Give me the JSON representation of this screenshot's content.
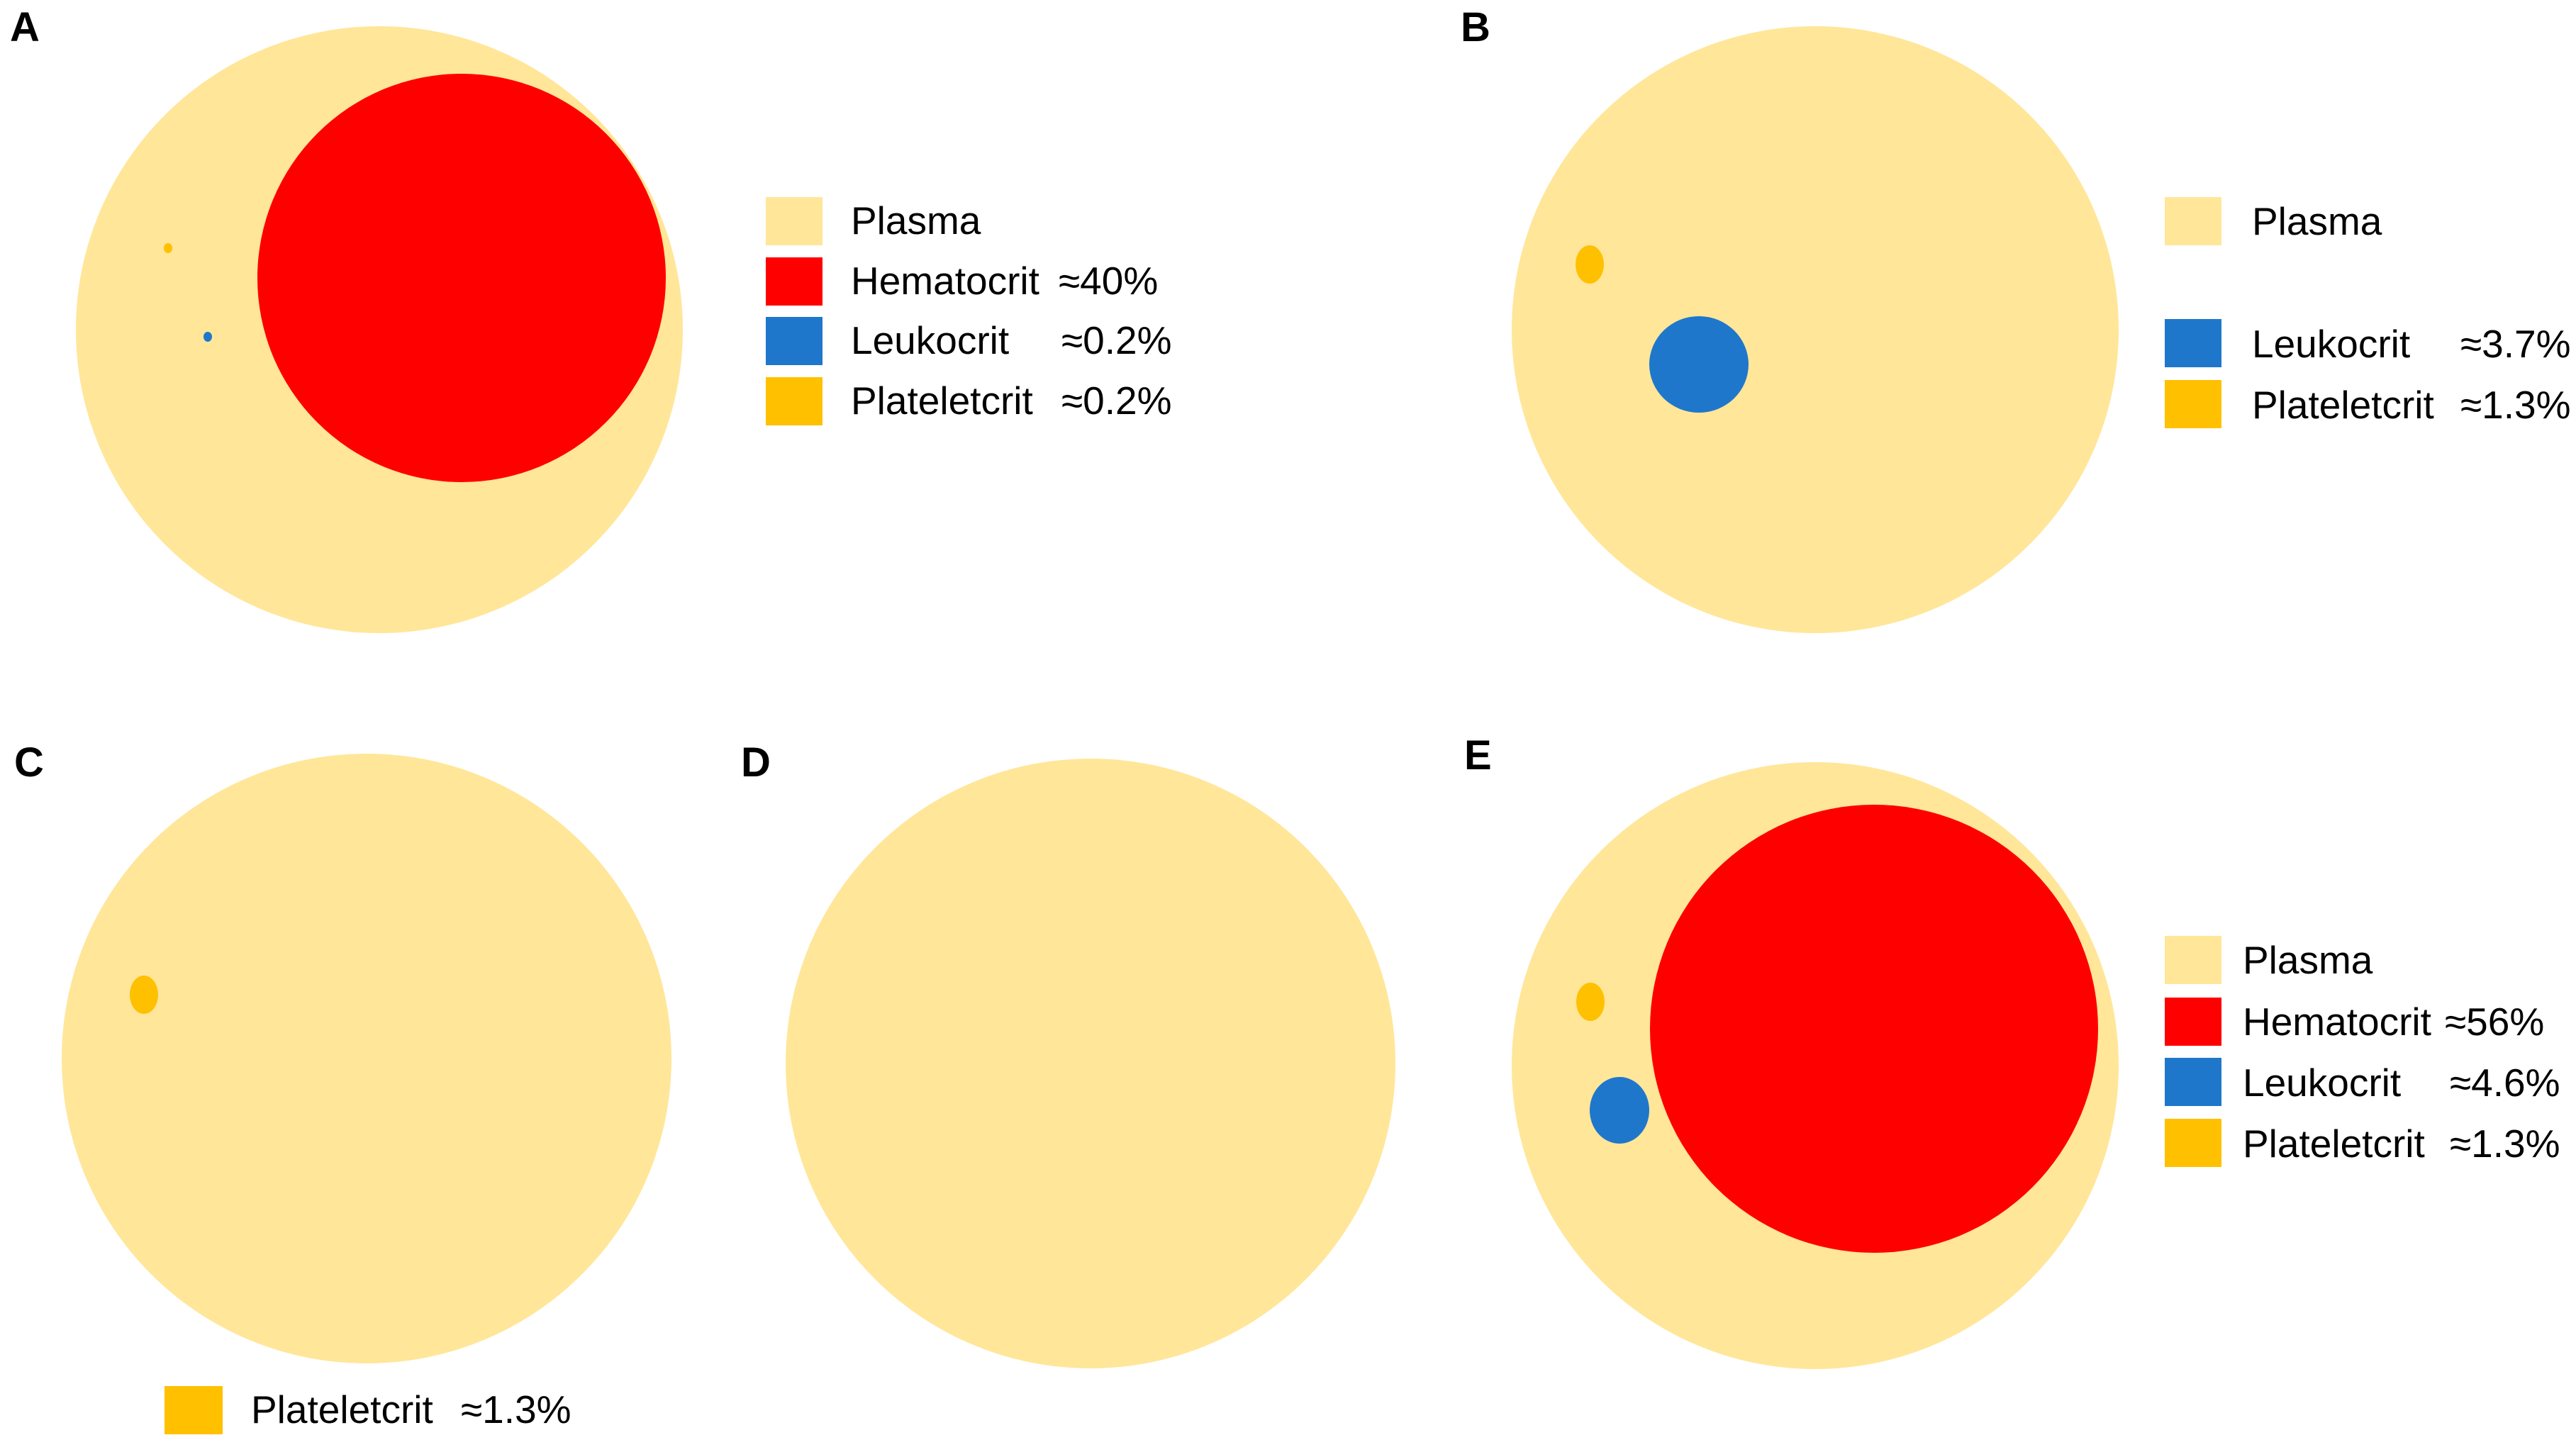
{
  "colors": {
    "plasma": "#FFE699",
    "hematocrit": "#FF0000",
    "leukocrit": "#1F77CC",
    "plateletcrit": "#FFC000"
  },
  "panels": {
    "A": {
      "letter": "A",
      "components": {
        "hematocrit": true,
        "leukocrit": true,
        "plateletcrit": true
      },
      "legend": [
        {
          "key": "plasma",
          "label": "Plasma",
          "value": ""
        },
        {
          "key": "hematocrit",
          "label": "Hematocrit",
          "value": "≈40%"
        },
        {
          "key": "leukocrit",
          "label": "Leukocrit",
          "value": "≈0.2%"
        },
        {
          "key": "plateletcrit",
          "label": "Plateletcrit",
          "value": "≈0.2%"
        }
      ]
    },
    "B": {
      "letter": "B",
      "components": {
        "hematocrit": false,
        "leukocrit": true,
        "plateletcrit": true
      },
      "legend": [
        {
          "key": "plasma",
          "label": "Plasma",
          "value": ""
        },
        {
          "key": "leukocrit",
          "label": "Leukocrit",
          "value": "≈3.7%"
        },
        {
          "key": "plateletcrit",
          "label": "Plateletcrit",
          "value": "≈1.3%"
        }
      ]
    },
    "C": {
      "letter": "C",
      "components": {
        "hematocrit": false,
        "leukocrit": false,
        "plateletcrit": true
      },
      "legend": [
        {
          "key": "plateletcrit",
          "label": "Plateletcrit",
          "value": "≈1.3%"
        }
      ]
    },
    "D": {
      "letter": "D",
      "components": {
        "hematocrit": false,
        "leukocrit": false,
        "plateletcrit": false
      },
      "legend": []
    },
    "E": {
      "letter": "E",
      "components": {
        "hematocrit": true,
        "leukocrit": true,
        "plateletcrit": true
      },
      "legend": [
        {
          "key": "plasma",
          "label": "Plasma",
          "value": ""
        },
        {
          "key": "hematocrit",
          "label": "Hematocrit",
          "value": "≈56%"
        },
        {
          "key": "leukocrit",
          "label": "Leukocrit",
          "value": "≈4.6%"
        },
        {
          "key": "plateletcrit",
          "label": "Plateletcrit",
          "value": "≈1.3%"
        }
      ]
    }
  }
}
